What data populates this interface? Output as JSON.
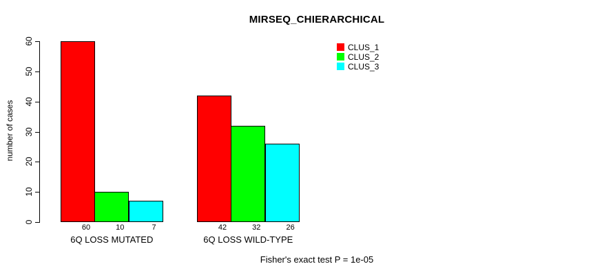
{
  "chart_data": {
    "type": "bar",
    "title": "MIRSEQ_CHIERARCHICAL",
    "ylabel": "number of cases",
    "xlabel": "",
    "ylim": [
      0,
      60
    ],
    "yticks": [
      0,
      10,
      20,
      30,
      40,
      50,
      60
    ],
    "categories": [
      "6Q LOSS MUTATED",
      "6Q LOSS WILD-TYPE"
    ],
    "series": [
      {
        "name": "CLUS_1",
        "color": "#ff0000",
        "values": [
          60,
          42
        ]
      },
      {
        "name": "CLUS_2",
        "color": "#00ff00",
        "values": [
          10,
          32
        ]
      },
      {
        "name": "CLUS_3",
        "color": "#00ffff",
        "values": [
          7,
          26
        ]
      }
    ],
    "bar_value_labels": [
      [
        60,
        10,
        7
      ],
      [
        42,
        32,
        26
      ]
    ],
    "legend": {
      "entries": [
        "CLUS_1",
        "CLUS_2",
        "CLUS_3"
      ],
      "colors": [
        "#ff0000",
        "#00ff00",
        "#00ffff"
      ],
      "position": "inside-top-right-of-center"
    },
    "grid": false,
    "legend_border": false,
    "annotation": "Fisher's exact test P = 1e-05",
    "axis_color": "#000000",
    "background": "#ffffff"
  }
}
